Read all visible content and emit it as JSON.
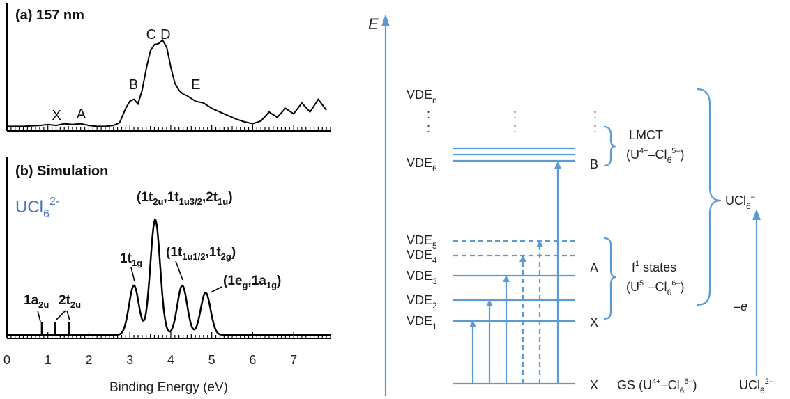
{
  "colors": {
    "diagram": "#5b9bd5",
    "curve": "#000000",
    "molecule_label": "#4472c4"
  },
  "chart_data": [
    {
      "type": "line",
      "title": "(a) 157 nm",
      "xlabel": "Binding Energy (eV)",
      "ylabel": "",
      "xlim": [
        0,
        7.9
      ],
      "x_ticks": [
        "0",
        "1",
        "2",
        "3",
        "4",
        "5",
        "6",
        "7"
      ],
      "peak_labels": [
        {
          "label": "X",
          "x": 1.2
        },
        {
          "label": "A",
          "x": 1.8
        },
        {
          "label": "B",
          "x": 3.08
        },
        {
          "label": "C",
          "x": 3.5
        },
        {
          "label": "D",
          "x": 3.85
        },
        {
          "label": "E",
          "x": 4.6
        }
      ],
      "series": [
        {
          "x": [
            0.0,
            0.4,
            0.8,
            1.0,
            1.2,
            1.4,
            1.6,
            1.8,
            2.0,
            2.2,
            2.4,
            2.6,
            2.75,
            2.9,
            3.0,
            3.1,
            3.2,
            3.3,
            3.4,
            3.5,
            3.6,
            3.7,
            3.8,
            3.9,
            4.0,
            4.1,
            4.2,
            4.3,
            4.4,
            4.6,
            4.8,
            5.0,
            5.2,
            5.4,
            5.6,
            5.8,
            6.0,
            6.2,
            6.4,
            6.6,
            6.8,
            7.0,
            7.2,
            7.4,
            7.6,
            7.8
          ],
          "y": [
            0.02,
            0.02,
            0.03,
            0.04,
            0.03,
            0.05,
            0.04,
            0.05,
            0.03,
            0.02,
            0.02,
            0.03,
            0.06,
            0.22,
            0.3,
            0.32,
            0.27,
            0.42,
            0.66,
            0.86,
            0.93,
            0.94,
            0.98,
            0.9,
            0.68,
            0.5,
            0.42,
            0.38,
            0.36,
            0.3,
            0.28,
            0.22,
            0.18,
            0.14,
            0.1,
            0.07,
            0.05,
            0.08,
            0.18,
            0.12,
            0.22,
            0.16,
            0.28,
            0.18,
            0.32,
            0.2
          ]
        }
      ]
    },
    {
      "type": "line",
      "title": "(b) Simulation",
      "xlabel": "Binding Energy (eV)",
      "xlim": [
        0,
        7.9
      ],
      "x_ticks": [
        "0",
        "1",
        "2",
        "3",
        "4",
        "5",
        "6",
        "7"
      ],
      "molecule": "UCl",
      "molecule_sub": "6",
      "molecule_sup": "2-",
      "sticks": [
        0.85,
        1.18,
        1.52
      ],
      "gaussians": [
        {
          "center": 3.1,
          "height": 0.42
        },
        {
          "center": 3.62,
          "height": 0.98
        },
        {
          "center": 4.28,
          "height": 0.42
        },
        {
          "center": 4.85,
          "height": 0.36
        }
      ],
      "band_labels": [
        {
          "main": "1a",
          "sub": "2u"
        },
        {
          "main": "2t",
          "sub": "2u"
        },
        {
          "main": "1t",
          "sub": "1g"
        },
        {
          "parts": [
            [
              "(1t",
              ""
            ],
            [
              "",
              "2u"
            ],
            [
              ",1t",
              ""
            ],
            [
              "",
              "1u3/2"
            ],
            [
              ",2t",
              ""
            ],
            [
              "",
              "1u"
            ],
            [
              ")",
              ""
            ]
          ]
        },
        {
          "parts": [
            [
              "(1t",
              ""
            ],
            [
              "",
              "1u1/2"
            ],
            [
              ",1t",
              ""
            ],
            [
              "",
              "2g"
            ],
            [
              ")",
              ""
            ]
          ]
        },
        {
          "parts": [
            [
              "(1e",
              ""
            ],
            [
              "",
              "g"
            ],
            [
              ",1a",
              ""
            ],
            [
              "",
              "1g"
            ],
            [
              ")",
              ""
            ]
          ]
        }
      ]
    }
  ],
  "diagram": {
    "axis_label": "E",
    "left_levels": [
      "VDE",
      "VDE",
      "VDE",
      "VDE",
      "VDE",
      "VDE",
      "VDE",
      "VDE"
    ],
    "left_subs": [
      "n",
      "6",
      "5",
      "4",
      "3",
      "2",
      "1",
      ""
    ],
    "vde_labels": [
      {
        "main": "VDE",
        "sub": "n"
      },
      {
        "main": "VDE",
        "sub": "6"
      },
      {
        "main": "VDE",
        "sub": "5"
      },
      {
        "main": "VDE",
        "sub": "4"
      },
      {
        "main": "VDE",
        "sub": "3"
      },
      {
        "main": "VDE",
        "sub": "2"
      },
      {
        "main": "VDE",
        "sub": "1"
      }
    ],
    "state_letters": {
      "B": "B",
      "A": "A",
      "X1": "X",
      "X0": "X"
    },
    "lmct": {
      "title": "LMCT",
      "line": "(U4+–Cl65–)"
    },
    "f1": {
      "title": "f1 states",
      "line": "(U5+–Cl66–)"
    },
    "gs": "GS (U4+–Cl66–)",
    "anion": "UCl62–",
    "neutral": "UCl6–",
    "electron": "–e",
    "ellipsis": ":"
  }
}
